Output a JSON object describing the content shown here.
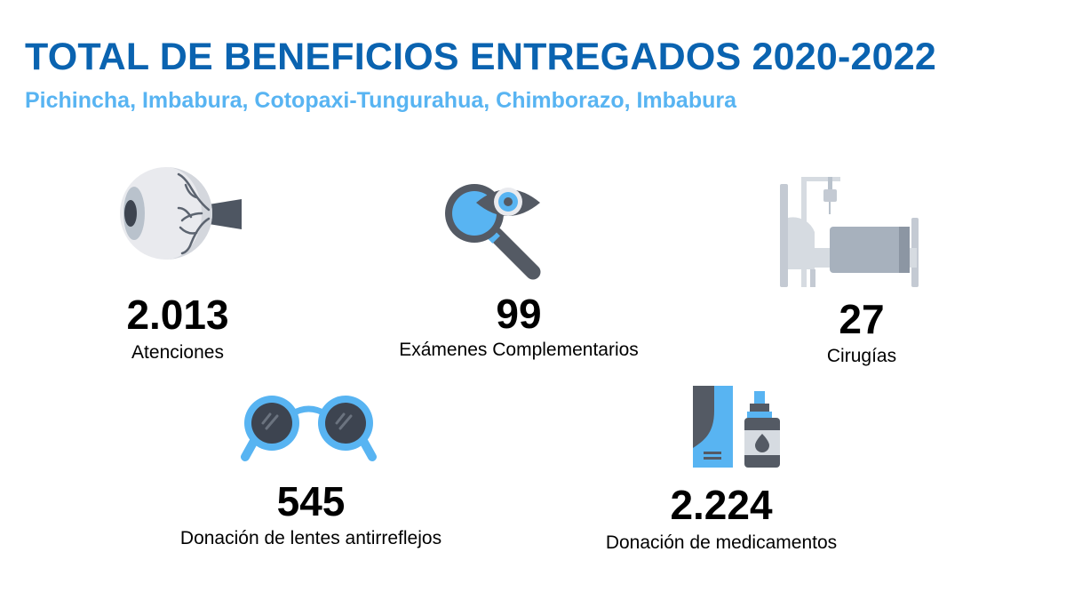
{
  "header": {
    "title": "TOTAL DE BENEFICIOS ENTREGADOS 2020-2022",
    "subtitle": "Pichincha, Imbabura, Cotopaxi-Tungurahua, Chimborazo, Imbabura"
  },
  "stats": [
    {
      "icon": "eye-icon",
      "value": "2.013",
      "label": "Atenciones"
    },
    {
      "icon": "magnifier-eye-icon",
      "value": "99",
      "label": "Exámenes Complementarios"
    },
    {
      "icon": "hospital-bed-icon",
      "value": "27",
      "label": "Cirugías"
    },
    {
      "icon": "glasses-icon",
      "value": "545",
      "label": "Donación de lentes antirreflejos"
    },
    {
      "icon": "medicine-icon",
      "value": "2.224",
      "label": "Donación de medicamentos"
    }
  ],
  "colors": {
    "title": "#0a63b0",
    "subtitle": "#58b4f2",
    "accent_blue": "#58b4f2",
    "dark_gray": "#545a64"
  }
}
